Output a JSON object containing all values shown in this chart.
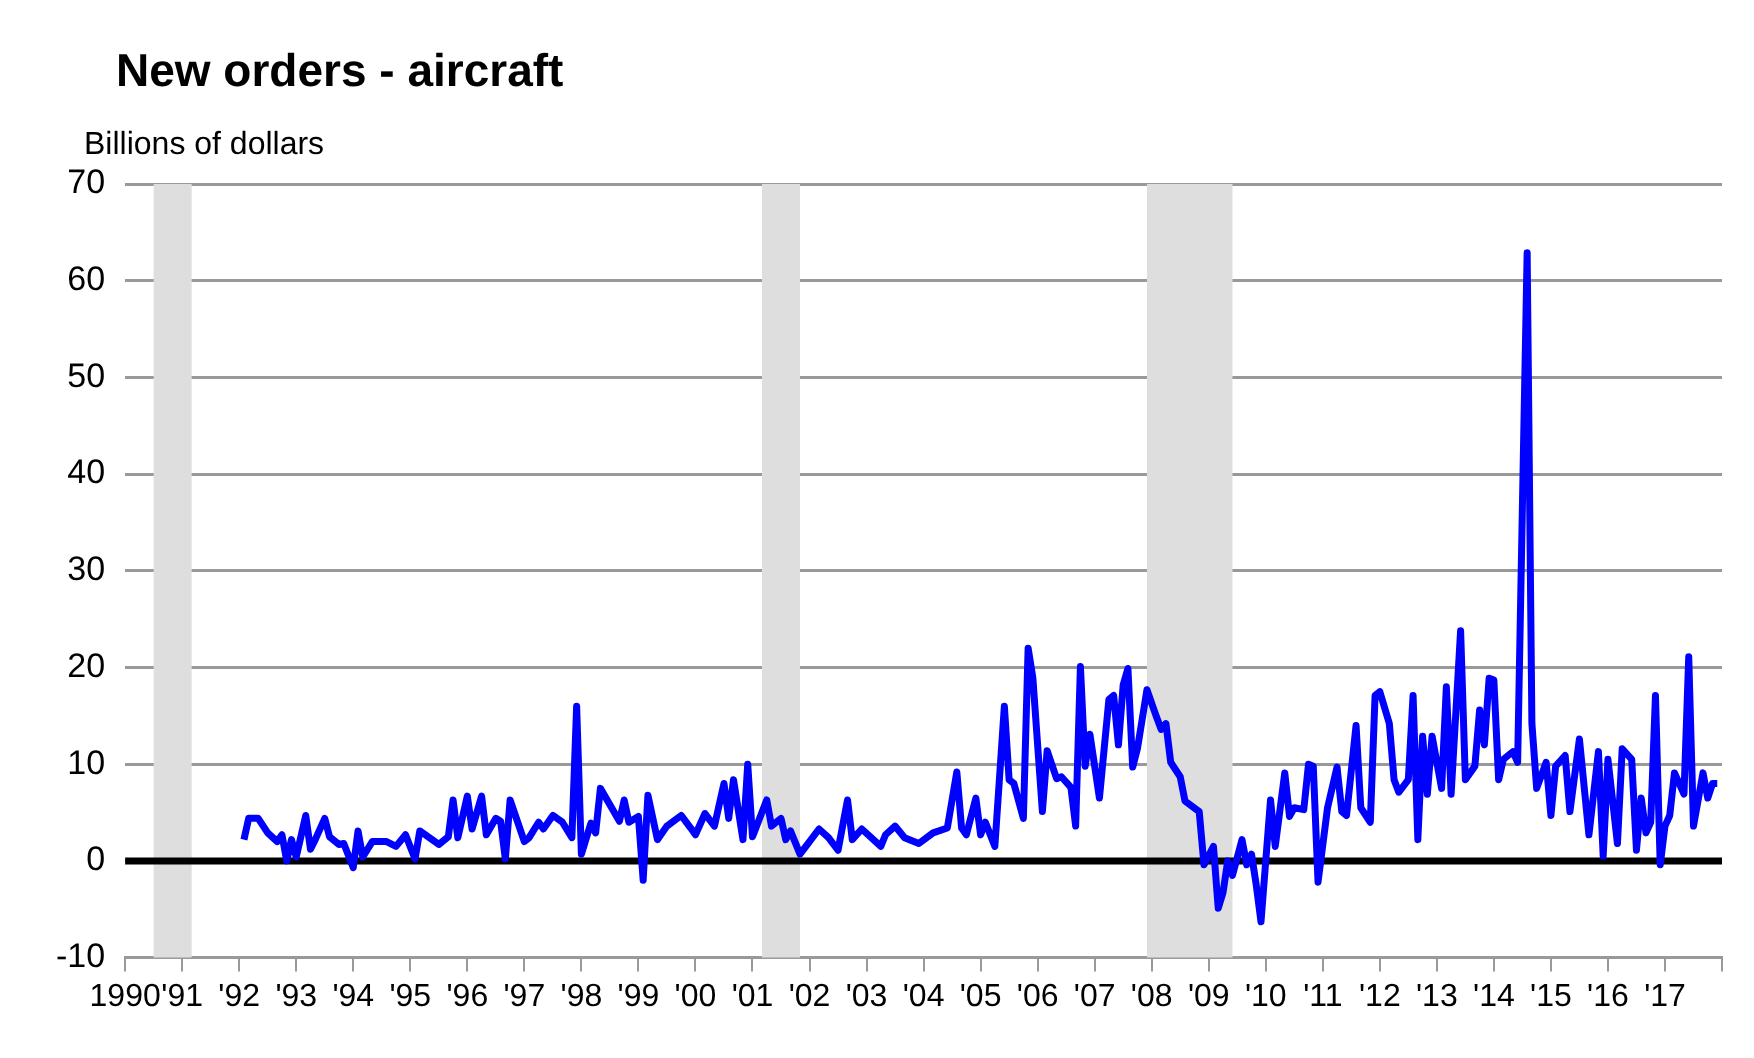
{
  "chart_data": {
    "type": "line",
    "title": "New orders - aircraft",
    "ylabel": "Billions of dollars",
    "x": [
      "1992-02",
      "1992-03",
      "1992-05",
      "1992-07",
      "1992-09",
      "1992-10",
      "1992-11",
      "1992-12",
      "1993-01",
      "1993-03",
      "1993-04",
      "1993-05",
      "1993-07",
      "1993-08",
      "1993-10",
      "1993-11",
      "1994-01",
      "1994-02",
      "1994-03",
      "1994-05",
      "1994-08",
      "1994-10",
      "1994-12",
      "1995-02",
      "1995-03",
      "1995-05",
      "1995-07",
      "1995-09",
      "1995-10",
      "1995-11",
      "1996-01",
      "1996-02",
      "1996-04",
      "1996-05",
      "1996-07",
      "1996-08",
      "1996-09",
      "1996-10",
      "1997-01",
      "1997-02",
      "1997-04",
      "1997-05",
      "1997-07",
      "1997-09",
      "1997-11",
      "1997-12",
      "1998-01",
      "1998-03",
      "1998-04",
      "1998-05",
      "1998-07",
      "1998-09",
      "1998-10",
      "1998-11",
      "1999-01",
      "1999-02",
      "1999-03",
      "1999-05",
      "1999-07",
      "1999-10",
      "1999-12",
      "2000-01",
      "2000-03",
      "2000-05",
      "2000-07",
      "2000-08",
      "2000-09",
      "2000-11",
      "2000-12",
      "2001-01",
      "2001-04",
      "2001-05",
      "2001-07",
      "2001-08",
      "2001-09",
      "2001-11",
      "2002-01",
      "2002-03",
      "2002-05",
      "2002-07",
      "2002-09",
      "2002-10",
      "2002-12",
      "2003-04",
      "2003-05",
      "2003-07",
      "2003-09",
      "2003-12",
      "2004-03",
      "2004-06",
      "2004-08",
      "2004-09",
      "2004-10",
      "2004-12",
      "2005-01",
      "2005-02",
      "2005-04",
      "2005-06",
      "2005-07",
      "2005-08",
      "2005-10",
      "2005-11",
      "2005-12",
      "2006-02",
      "2006-03",
      "2006-05",
      "2006-06",
      "2006-08",
      "2006-09",
      "2006-10",
      "2006-11",
      "2006-12",
      "2007-02",
      "2007-04",
      "2007-05",
      "2007-06",
      "2007-07",
      "2007-08",
      "2007-09",
      "2007-10",
      "2007-12",
      "2008-02",
      "2008-03",
      "2008-04",
      "2008-05",
      "2008-07",
      "2008-08",
      "2008-11",
      "2008-12",
      "2009-02",
      "2009-03",
      "2009-04",
      "2009-05",
      "2009-06",
      "2009-08",
      "2009-09",
      "2009-10",
      "2009-11",
      "2009-12",
      "2010-02",
      "2010-03",
      "2010-05",
      "2010-06",
      "2010-07",
      "2010-09",
      "2010-10",
      "2010-11",
      "2010-12",
      "2011-02",
      "2011-04",
      "2011-05",
      "2011-06",
      "2011-08",
      "2011-09",
      "2011-11",
      "2011-12",
      "2012-01",
      "2012-03",
      "2012-04",
      "2012-05",
      "2012-07",
      "2012-08",
      "2012-09",
      "2012-10",
      "2012-11",
      "2012-12",
      "2013-02",
      "2013-03",
      "2013-04",
      "2013-06",
      "2013-07",
      "2013-09",
      "2013-10",
      "2013-11",
      "2013-12",
      "2014-01",
      "2014-02",
      "2014-03",
      "2014-05",
      "2014-06",
      "2014-08",
      "2014-09",
      "2014-10",
      "2014-12",
      "2015-01",
      "2015-02",
      "2015-04",
      "2015-05",
      "2015-07",
      "2015-09",
      "2015-11",
      "2015-12",
      "2016-01",
      "2016-03",
      "2016-04",
      "2016-06",
      "2016-07",
      "2016-08",
      "2016-09",
      "2016-10",
      "2016-11",
      "2016-12",
      "2017-01",
      "2017-02",
      "2017-03",
      "2017-05",
      "2017-06",
      "2017-07",
      "2017-09",
      "2017-10",
      "2017-11",
      "2017-12"
    ],
    "series": [
      {
        "color": "#0000ff",
        "values": [
          2.2,
          4.4,
          4.4,
          2.9,
          2.0,
          2.7,
          0,
          2.2,
          0.4,
          4.7,
          1.2,
          2.2,
          4.4,
          2.5,
          1.7,
          1.8,
          -0.7,
          3.1,
          0.4,
          2.0,
          2.0,
          1.5,
          2.7,
          0.2,
          3.1,
          2.4,
          1.7,
          2.5,
          6.3,
          2.4,
          6.7,
          3.3,
          6.7,
          2.7,
          4.4,
          4.1,
          0.2,
          6.3,
          2.0,
          2.4,
          4.0,
          3.3,
          4.7,
          4.0,
          2.4,
          16.0,
          0.7,
          3.9,
          2.9,
          7.5,
          5.8,
          4.1,
          6.3,
          4.0,
          4.6,
          -2.0,
          6.8,
          2.2,
          3.6,
          4.7,
          3.4,
          2.7,
          4.9,
          3.6,
          8.0,
          4.4,
          8.4,
          2.2,
          10.0,
          2.5,
          6.3,
          3.6,
          4.4,
          2.2,
          3.1,
          0.7,
          2.0,
          3.3,
          2.4,
          1.1,
          6.3,
          2.2,
          3.3,
          1.5,
          2.7,
          3.6,
          2.4,
          1.8,
          2.9,
          3.4,
          9.2,
          3.4,
          2.7,
          6.5,
          2.7,
          4.0,
          1.5,
          16.0,
          8.4,
          8.0,
          4.4,
          22.0,
          18.9,
          5.1,
          11.4,
          8.5,
          8.7,
          7.6,
          3.6,
          20.1,
          9.8,
          13.1,
          6.5,
          16.7,
          17.1,
          12.0,
          18.2,
          19.9,
          9.7,
          11.6,
          17.7,
          14.9,
          13.6,
          14.2,
          10.2,
          8.7,
          6.2,
          5.1,
          -0.4,
          1.5,
          -4.9,
          -3.3,
          0,
          -1.5,
          2.2,
          -0.4,
          0.7,
          -2.5,
          -6.3,
          6.3,
          1.5,
          9.1,
          4.6,
          5.5,
          5.3,
          10.0,
          9.8,
          -2.2,
          5.5,
          9.7,
          5.1,
          4.7,
          14.0,
          5.5,
          4.0,
          17.1,
          17.5,
          14.2,
          8.4,
          7.1,
          8.4,
          17.1,
          2.2,
          12.9,
          6.9,
          12.9,
          7.5,
          18.0,
          6.9,
          23.8,
          8.4,
          9.8,
          15.6,
          12.0,
          18.9,
          18.7,
          8.4,
          10.5,
          11.3,
          10.2,
          62.9,
          14.2,
          7.5,
          10.2,
          4.7,
          9.8,
          10.9,
          5.1,
          12.6,
          2.7,
          11.3,
          0.5,
          10.5,
          1.8,
          11.6,
          10.5,
          1.1,
          6.5,
          2.9,
          4.0,
          17.1,
          -0.4,
          3.6,
          4.7,
          9.1,
          6.9,
          21.1,
          3.6,
          9.1,
          6.5,
          8.0,
          8.0
        ]
      }
    ],
    "xlim": [
      "1990",
      "2018"
    ],
    "xticks": [
      {
        "value": "1990",
        "label": "1990"
      },
      {
        "value": "1991",
        "label": "'91"
      },
      {
        "value": "1992",
        "label": "'92"
      },
      {
        "value": "1993",
        "label": "'93"
      },
      {
        "value": "1994",
        "label": "'94"
      },
      {
        "value": "1995",
        "label": "'95"
      },
      {
        "value": "1996",
        "label": "'96"
      },
      {
        "value": "1997",
        "label": "'97"
      },
      {
        "value": "1998",
        "label": "'98"
      },
      {
        "value": "1999",
        "label": "'99"
      },
      {
        "value": "2000",
        "label": "'00"
      },
      {
        "value": "2001",
        "label": "'01"
      },
      {
        "value": "2002",
        "label": "'02"
      },
      {
        "value": "2003",
        "label": "'03"
      },
      {
        "value": "2004",
        "label": "'04"
      },
      {
        "value": "2005",
        "label": "'05"
      },
      {
        "value": "2006",
        "label": "'06"
      },
      {
        "value": "2007",
        "label": "'07"
      },
      {
        "value": "2008",
        "label": "'08"
      },
      {
        "value": "2009",
        "label": "'09"
      },
      {
        "value": "2010",
        "label": "'10"
      },
      {
        "value": "2011",
        "label": "'11"
      },
      {
        "value": "2012",
        "label": "'12"
      },
      {
        "value": "2013",
        "label": "'13"
      },
      {
        "value": "2014",
        "label": "'14"
      },
      {
        "value": "2015",
        "label": "'15"
      },
      {
        "value": "2016",
        "label": "'16"
      },
      {
        "value": "2017",
        "label": "'17"
      },
      {
        "value": "2018",
        "label": null
      }
    ],
    "ylim": [
      -10,
      70
    ],
    "yticks": [
      -10,
      0,
      10,
      20,
      30,
      40,
      50,
      60,
      70
    ],
    "bands": [
      {
        "axis": "x",
        "from": "1990-07",
        "to": "1991-03",
        "color": "#dedede"
      },
      {
        "axis": "x",
        "from": "2001-03",
        "to": "2001-11",
        "color": "#dedede"
      },
      {
        "axis": "x",
        "from": "2007-12",
        "to": "2009-06",
        "color": "#dedede"
      }
    ],
    "ref_lines": [
      {
        "axis": "y",
        "value": 0,
        "color": "#000000"
      }
    ],
    "grid": "y",
    "legend": false,
    "marker": "none",
    "line_style": "solid"
  }
}
